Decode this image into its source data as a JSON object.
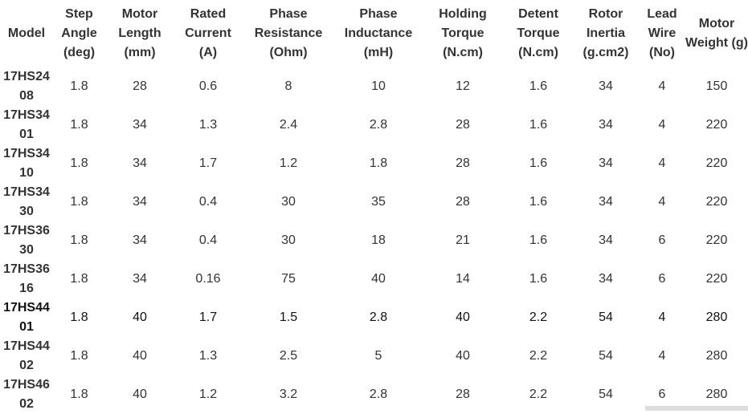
{
  "table": {
    "headers": [
      "Model",
      "Step Angle (deg)",
      "Motor Length (mm)",
      "Rated Current (A)",
      "Phase Resistance (Ohm)",
      "Phase Inductance (mH)",
      "Holding Torque (N.cm)",
      "Detent Torque (N.cm)",
      "Rotor Inertia (g.cm2)",
      "Lead Wire (No)",
      "Motor Weight (g)"
    ],
    "rows": [
      [
        "17HS2408",
        "1.8",
        "28",
        "0.6",
        "8",
        "10",
        "12",
        "1.6",
        "34",
        "4",
        "150"
      ],
      [
        "17HS3401",
        "1.8",
        "34",
        "1.3",
        "2.4",
        "2.8",
        "28",
        "1.6",
        "34",
        "4",
        "220"
      ],
      [
        "17HS3410",
        "1.8",
        "34",
        "1.7",
        "1.2",
        "1.8",
        "28",
        "1.6",
        "34",
        "4",
        "220"
      ],
      [
        "17HS3430",
        "1.8",
        "34",
        "0.4",
        "30",
        "35",
        "28",
        "1.6",
        "34",
        "4",
        "220"
      ],
      [
        "17HS3630",
        "1.8",
        "34",
        "0.4",
        "30",
        "18",
        "21",
        "1.6",
        "34",
        "6",
        "220"
      ],
      [
        "17HS3616",
        "1.8",
        "34",
        "0.16",
        "75",
        "40",
        "14",
        "1.6",
        "34",
        "6",
        "220"
      ],
      [
        "17HS4401",
        "1.8",
        "40",
        "1.7",
        "1.5",
        "2.8",
        "40",
        "2.2",
        "54",
        "4",
        "280"
      ],
      [
        "17HS4402",
        "1.8",
        "40",
        "1.3",
        "2.5",
        "5",
        "40",
        "2.2",
        "54",
        "4",
        "280"
      ],
      [
        "17HS4602",
        "1.8",
        "40",
        "1.2",
        "3.2",
        "2.8",
        "28",
        "2.2",
        "54",
        "6",
        "280"
      ]
    ],
    "highlighted_row": "17HS4401"
  }
}
